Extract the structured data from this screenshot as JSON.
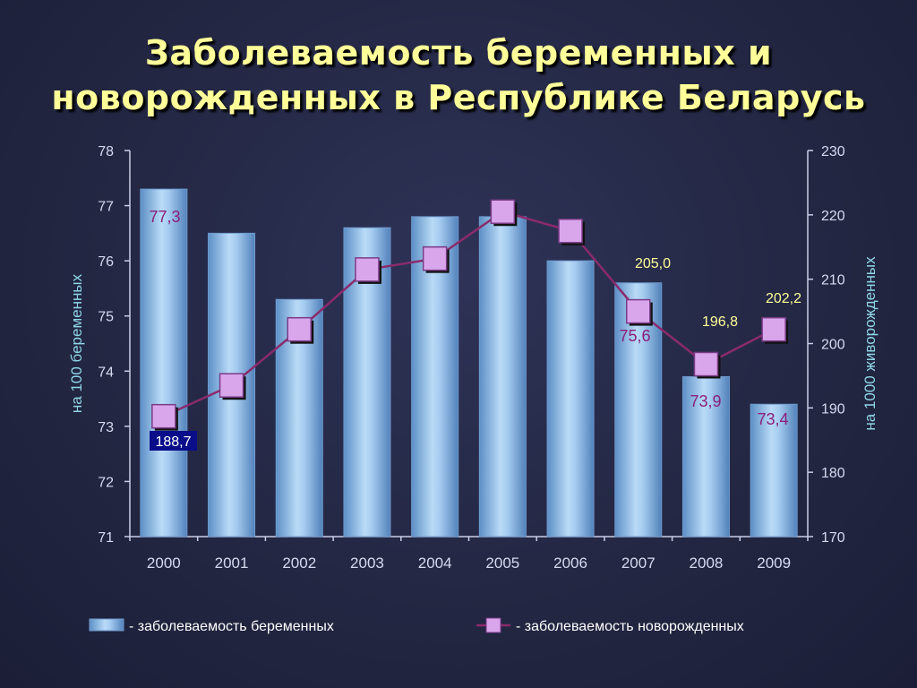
{
  "title": {
    "line1": "Заболеваемость беременных и",
    "line2": "новорожденных в Республике Беларусь"
  },
  "chart_data": {
    "type": "bar",
    "categories": [
      "2000",
      "2001",
      "2002",
      "2003",
      "2004",
      "2005",
      "2006",
      "2007",
      "2008",
      "2009"
    ],
    "series": [
      {
        "name": "- заболеваемость беременных",
        "type": "bar",
        "axis": "left",
        "values": [
          77.3,
          76.5,
          75.3,
          76.6,
          76.8,
          76.8,
          76.0,
          75.6,
          73.9,
          73.4
        ]
      },
      {
        "name": "- заболеваемость новорожденных",
        "type": "line",
        "axis": "right",
        "values": [
          188.7,
          193.5,
          202.2,
          211.5,
          213.2,
          220.5,
          217.5,
          205.0,
          196.8,
          202.2
        ]
      }
    ],
    "y_left": {
      "label": "на 100 беременных",
      "range": [
        71,
        78
      ],
      "ticks": [
        "71",
        "72",
        "73",
        "74",
        "75",
        "76",
        "77",
        "78"
      ]
    },
    "y_right": {
      "label": "на 1000 живорожденных",
      "range": [
        170,
        230
      ],
      "ticks": [
        "170",
        "180",
        "190",
        "200",
        "210",
        "220",
        "230"
      ]
    },
    "data_labels": {
      "bars": [
        {
          "index": 0,
          "text": "77,3"
        },
        {
          "index": 7,
          "text": "75,6"
        },
        {
          "index": 8,
          "text": "73,9"
        },
        {
          "index": 9,
          "text": "73,4"
        }
      ],
      "line": [
        {
          "index": 0,
          "text": "188,7"
        },
        {
          "index": 7,
          "text": "205,0"
        },
        {
          "index": 8,
          "text": "196,8"
        },
        {
          "index": 9,
          "text": "202,2"
        }
      ]
    },
    "legend_position": "bottom",
    "colors": {
      "bar": "#8fbde8",
      "line": "#8b2a6b",
      "marker": "#d9a6ec",
      "title": "#fffe99"
    }
  }
}
